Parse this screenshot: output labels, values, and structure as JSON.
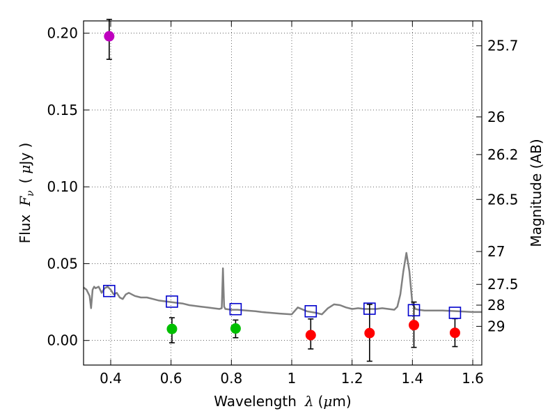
{
  "chart_data": {
    "type": "scatter",
    "xlabel": "Wavelength",
    "xlabel_symbol": "λ",
    "xlabel_unit_open": "(",
    "xlabel_unit_mu": "μ",
    "xlabel_unit_rest": "m)",
    "ylabel": "Flux",
    "ylabel_symbol": "F",
    "ylabel_subscript": "ν",
    "ylabel_unit_open": "(",
    "ylabel_unit_mu": "μ",
    "ylabel_unit_rest": "Jy )",
    "y2label": "Magnitude (AB)",
    "xlim": [
      0.31,
      1.63
    ],
    "ylim": [
      -0.016,
      0.208
    ],
    "grid": true,
    "x_ticks": [
      0.4,
      0.6,
      0.8,
      1.0,
      1.2,
      1.4,
      1.6
    ],
    "x_tick_labels": [
      "0.4",
      "0.6",
      "0.8",
      "1",
      "1.2",
      "1.4",
      "1.6"
    ],
    "y_ticks": [
      0.0,
      0.05,
      0.1,
      0.15,
      0.2
    ],
    "y_tick_labels": [
      "0.00",
      "0.05",
      "0.10",
      "0.15",
      "0.20"
    ],
    "mag_ticks": [
      {
        "label": "25.7",
        "flux": 0.1918
      },
      {
        "label": "26",
        "flux": 0.1455
      },
      {
        "label": "26.2",
        "flux": 0.121
      },
      {
        "label": "26.5",
        "flux": 0.0918
      },
      {
        "label": "27",
        "flux": 0.0579
      },
      {
        "label": "27.5",
        "flux": 0.0365
      },
      {
        "label": "28",
        "flux": 0.023
      },
      {
        "label": "29",
        "flux": 0.0092
      }
    ],
    "observed": [
      {
        "x": 0.395,
        "y": 0.198,
        "err_lo": 0.183,
        "err_hi": 0.209,
        "color": "#bf00bf"
      },
      {
        "x": 0.603,
        "y": 0.0075,
        "err_lo": -0.0015,
        "err_hi": 0.0148,
        "color": "#00bf00"
      },
      {
        "x": 0.814,
        "y": 0.0078,
        "err_lo": 0.0018,
        "err_hi": 0.0133,
        "color": "#00bf00"
      },
      {
        "x": 1.063,
        "y": 0.0035,
        "err_lo": -0.0055,
        "err_hi": 0.014,
        "color": "#ff0000"
      },
      {
        "x": 1.258,
        "y": 0.0048,
        "err_lo": -0.0135,
        "err_hi": 0.0235,
        "color": "#ff0000"
      },
      {
        "x": 1.405,
        "y": 0.01,
        "err_lo": -0.0045,
        "err_hi": 0.025,
        "color": "#ff0000"
      },
      {
        "x": 1.541,
        "y": 0.005,
        "err_lo": -0.004,
        "err_hi": 0.0142,
        "color": "#ff0000"
      }
    ],
    "model_points": {
      "color": "#0000cc",
      "points": [
        {
          "x": 0.395,
          "y": 0.0322
        },
        {
          "x": 0.603,
          "y": 0.0253
        },
        {
          "x": 0.814,
          "y": 0.0204
        },
        {
          "x": 1.063,
          "y": 0.019
        },
        {
          "x": 1.258,
          "y": 0.0207
        },
        {
          "x": 1.405,
          "y": 0.0197
        },
        {
          "x": 1.541,
          "y": 0.018
        }
      ]
    },
    "sed": {
      "color": "#808080",
      "x": [
        0.31,
        0.32,
        0.33,
        0.335,
        0.34,
        0.345,
        0.35,
        0.36,
        0.37,
        0.38,
        0.39,
        0.4,
        0.41,
        0.42,
        0.43,
        0.44,
        0.45,
        0.46,
        0.48,
        0.5,
        0.52,
        0.54,
        0.56,
        0.58,
        0.6,
        0.62,
        0.64,
        0.66,
        0.68,
        0.7,
        0.72,
        0.74,
        0.76,
        0.768,
        0.772,
        0.776,
        0.78,
        0.8,
        0.82,
        0.85,
        0.88,
        0.9,
        0.93,
        0.96,
        1.0,
        1.02,
        1.05,
        1.08,
        1.1,
        1.12,
        1.14,
        1.16,
        1.18,
        1.2,
        1.22,
        1.24,
        1.26,
        1.28,
        1.3,
        1.32,
        1.34,
        1.35,
        1.36,
        1.37,
        1.38,
        1.39,
        1.4,
        1.41,
        1.42,
        1.44,
        1.46,
        1.5,
        1.55,
        1.6,
        1.63
      ],
      "y": [
        0.0345,
        0.033,
        0.029,
        0.021,
        0.033,
        0.035,
        0.034,
        0.035,
        0.031,
        0.034,
        0.035,
        0.033,
        0.03,
        0.031,
        0.028,
        0.027,
        0.03,
        0.031,
        0.029,
        0.028,
        0.028,
        0.027,
        0.026,
        0.0255,
        0.025,
        0.0245,
        0.024,
        0.023,
        0.0225,
        0.022,
        0.0215,
        0.021,
        0.0205,
        0.021,
        0.047,
        0.022,
        0.0205,
        0.02,
        0.02,
        0.0195,
        0.019,
        0.0185,
        0.018,
        0.0175,
        0.017,
        0.0215,
        0.019,
        0.018,
        0.017,
        0.021,
        0.0235,
        0.023,
        0.0215,
        0.0205,
        0.021,
        0.0205,
        0.0205,
        0.0205,
        0.021,
        0.0205,
        0.02,
        0.022,
        0.03,
        0.045,
        0.057,
        0.045,
        0.024,
        0.0205,
        0.02,
        0.0195,
        0.0195,
        0.0195,
        0.019,
        0.0185,
        0.0185
      ]
    }
  }
}
